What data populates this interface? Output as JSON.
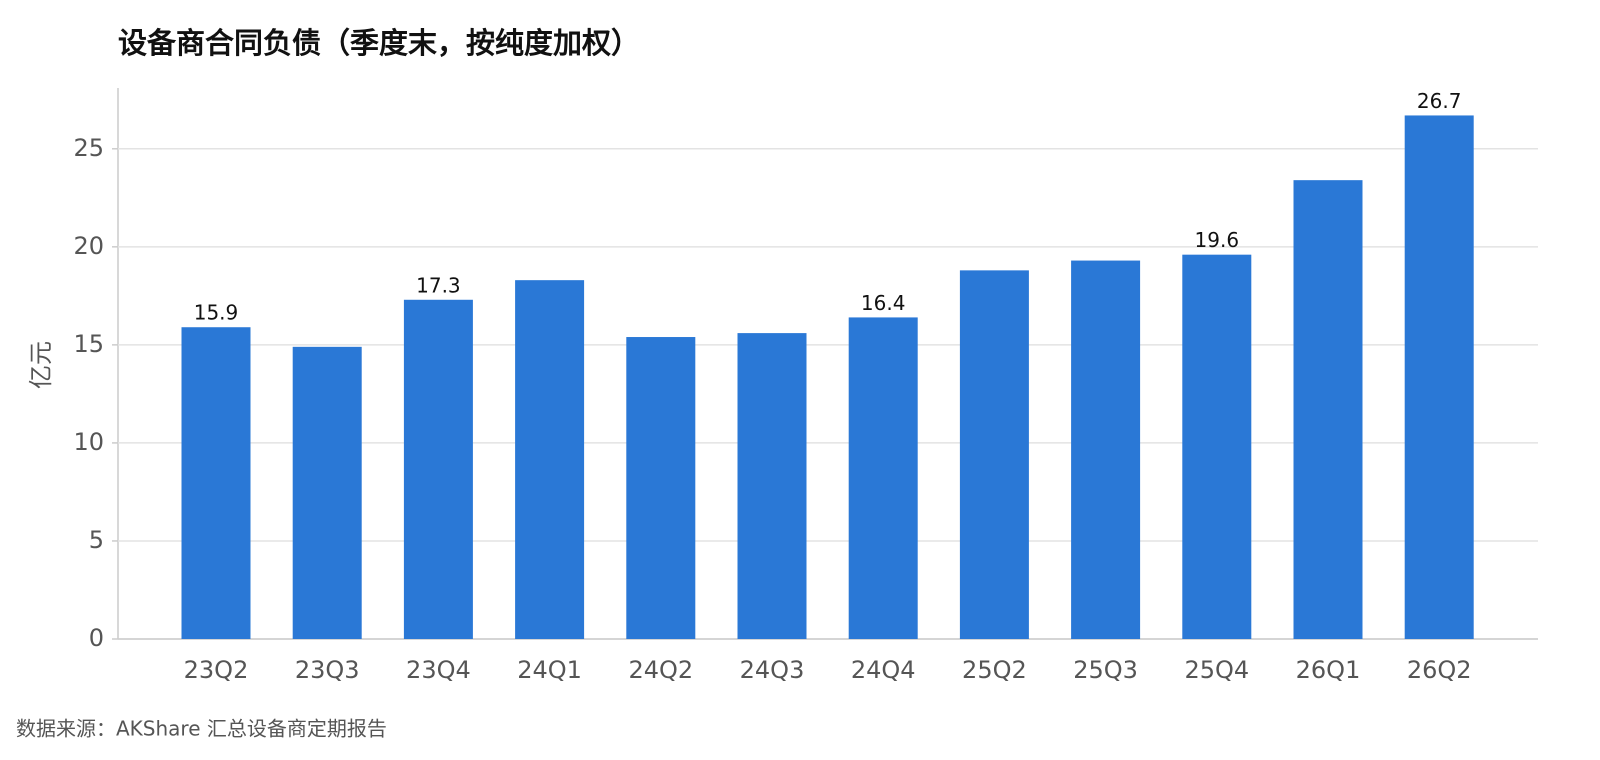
{
  "chart_data": {
    "type": "bar",
    "title": "设备商合同负债（季度末，按纯度加权）",
    "y_label": "亿元",
    "source": "数据来源：AKShare 汇总设备商定期报告",
    "categories": [
      "23Q2",
      "23Q3",
      "23Q4",
      "24Q1",
      "24Q2",
      "24Q3",
      "24Q4",
      "25Q2",
      "25Q3",
      "25Q4",
      "26Q1",
      "26Q2"
    ],
    "values": [
      15.9,
      14.9,
      17.3,
      18.3,
      15.4,
      15.6,
      16.4,
      18.8,
      19.3,
      19.6,
      23.4,
      26.7
    ],
    "value_labels": [
      "15.9",
      null,
      "17.3",
      null,
      null,
      null,
      "16.4",
      null,
      null,
      "19.6",
      null,
      "26.7"
    ],
    "color": "#2a78d6",
    "ylim": [
      0,
      28.1
    ],
    "yticks": [
      0,
      5,
      10,
      15,
      20,
      25
    ],
    "grid": true
  }
}
